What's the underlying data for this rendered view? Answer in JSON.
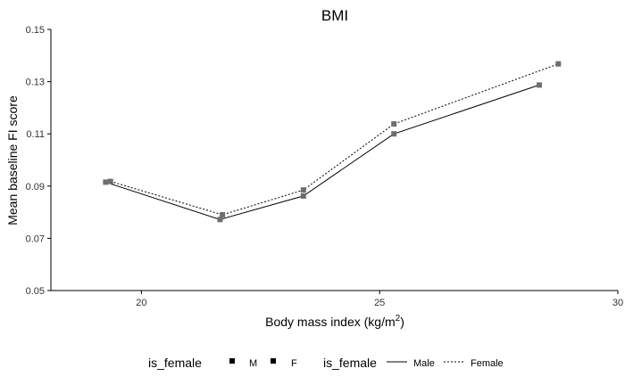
{
  "chart_data": {
    "type": "line",
    "title": "BMI",
    "xlabel": "Body mass index (kg/m",
    "xlabel_sup": "2",
    "xlabel_tail": ")",
    "ylabel": "Mean baseline FI score",
    "xlim": [
      18.1,
      30
    ],
    "ylim": [
      0.05,
      0.15
    ],
    "x_ticks": [
      20,
      25,
      30
    ],
    "y_ticks": [
      0.05,
      0.07,
      0.09,
      0.11,
      0.13,
      0.15
    ],
    "x_tick_labels": [
      "20",
      "25",
      "30"
    ],
    "y_tick_labels": [
      "0.05",
      "0.07",
      "0.09",
      "0.11",
      "0.13",
      "0.15"
    ],
    "grid": false,
    "series": [
      {
        "name": "Male",
        "group": "M",
        "line_style": "solid",
        "x": [
          19.25,
          21.65,
          23.4,
          25.3,
          28.35
        ],
        "y": [
          0.0915,
          0.0772,
          0.0862,
          0.11,
          0.1287
        ]
      },
      {
        "name": "Female",
        "group": "F",
        "line_style": "dotted",
        "x": [
          19.35,
          21.7,
          23.4,
          25.3,
          28.75
        ],
        "y": [
          0.0918,
          0.079,
          0.0885,
          0.1138,
          0.1368
        ]
      }
    ],
    "legend": {
      "placement": "bottom",
      "shape_title": "is_female",
      "shape_labels": [
        "M",
        "F"
      ],
      "line_title": "is_female",
      "line_labels": [
        "Male",
        "Female"
      ]
    }
  }
}
